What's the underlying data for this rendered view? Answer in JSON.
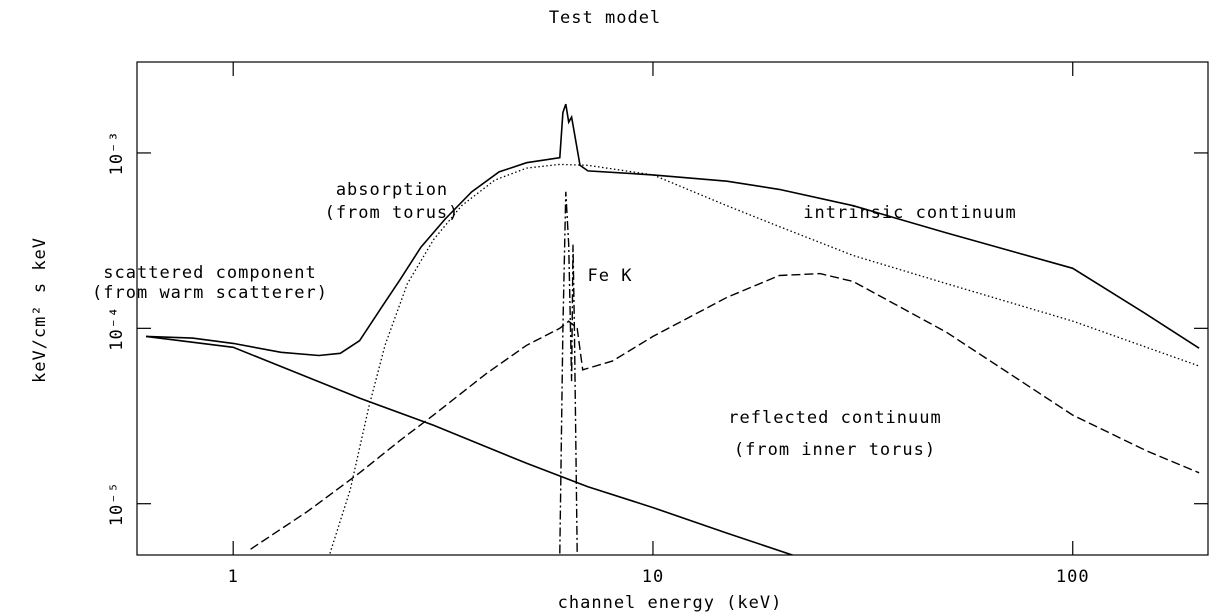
{
  "chart_data": {
    "type": "line",
    "title": "Test model",
    "xlabel": "channel energy (keV)",
    "ylabel": "keV/cm² s keV",
    "xscale": "log",
    "yscale": "log",
    "xlim": [
      0.59,
      210
    ],
    "ylim": [
      5.1e-06,
      0.0033
    ],
    "xticks": [
      1,
      10,
      100
    ],
    "yticks": [
      {
        "value": 1e-05,
        "label": "10⁻⁵"
      },
      {
        "value": 0.0001,
        "label": "10⁻⁴"
      },
      {
        "value": 0.001,
        "label": "10⁻³"
      }
    ],
    "annotations": [
      "absorption",
      "(from torus)",
      "intrinsic continuum",
      "scattered component",
      "(from warm scatterer)",
      "Fe K",
      "reflected continuum",
      "(from inner torus)"
    ],
    "series": [
      {
        "color": "#000000",
        "style": "solid",
        "x": [
          0.62,
          0.8,
          1.0,
          1.3,
          1.6,
          1.8,
          2.0,
          2.2,
          2.5,
          2.8,
          3.2,
          3.7,
          4.3,
          5.0,
          6.0,
          6.1,
          6.2,
          6.3,
          6.4,
          6.5,
          6.7,
          7.0,
          10,
          15,
          20,
          30,
          50,
          100,
          150,
          200
        ],
        "values": [
          9e-05,
          8.8e-05,
          8.2e-05,
          7.3e-05,
          7e-05,
          7.2e-05,
          8.5e-05,
          0.00012,
          0.00019,
          0.00029,
          0.00042,
          0.0006,
          0.00078,
          0.00088,
          0.00094,
          0.0017,
          0.0019,
          0.0015,
          0.0016,
          0.0013,
          0.00085,
          0.00079,
          0.00075,
          0.00069,
          0.00062,
          0.0005,
          0.00035,
          0.00022,
          0.00012,
          7.7e-05
        ]
      },
      {
        "color": "#000000",
        "style": "dotted",
        "x": [
          1.7,
          1.9,
          2.1,
          2.3,
          2.6,
          3.0,
          3.5,
          4.2,
          5.0,
          6.0,
          7.0,
          10,
          15,
          20,
          30,
          50,
          100,
          200
        ],
        "values": [
          5.2e-06,
          1.2e-05,
          3.5e-05,
          8e-05,
          0.00018,
          0.00032,
          0.0005,
          0.0007,
          0.00082,
          0.00086,
          0.00085,
          0.00075,
          0.0005,
          0.00038,
          0.00026,
          0.00018,
          0.00011,
          6.1e-05
        ]
      },
      {
        "color": "#000000",
        "style": "solid",
        "x": [
          0.62,
          1.0,
          2.0,
          3.0,
          5.0,
          7.0,
          10,
          15,
          22
        ],
        "values": [
          9e-05,
          7.8e-05,
          4e-05,
          2.8e-05,
          1.7e-05,
          1.25e-05,
          9.5e-06,
          6.8e-06,
          5e-06
        ]
      },
      {
        "color": "#000000",
        "style": "dashed",
        "x": [
          1.1,
          1.5,
          2.0,
          2.5,
          3.0,
          4.0,
          5.0,
          6.0,
          6.3,
          6.6,
          6.8,
          8.0,
          10,
          15,
          20,
          25,
          30,
          50,
          100,
          150,
          200
        ],
        "values": [
          5.5e-06,
          9e-06,
          1.5e-05,
          2.3e-05,
          3.2e-05,
          5.5e-05,
          8e-05,
          0.0001,
          0.00011,
          0.0001,
          5.8e-05,
          6.5e-05,
          9e-05,
          0.00015,
          0.0002,
          0.000205,
          0.000185,
          9.5e-05,
          3.2e-05,
          2e-05,
          1.5e-05
        ]
      },
      {
        "color": "#000000",
        "style": "dashdot",
        "x": [
          6.0,
          6.1,
          6.2,
          6.3,
          6.4,
          6.45,
          6.5,
          6.6
        ],
        "values": [
          5.2e-06,
          0.0001,
          0.0006,
          0.0003,
          5e-05,
          0.0003,
          0.0001,
          5.2e-06
        ]
      }
    ]
  }
}
